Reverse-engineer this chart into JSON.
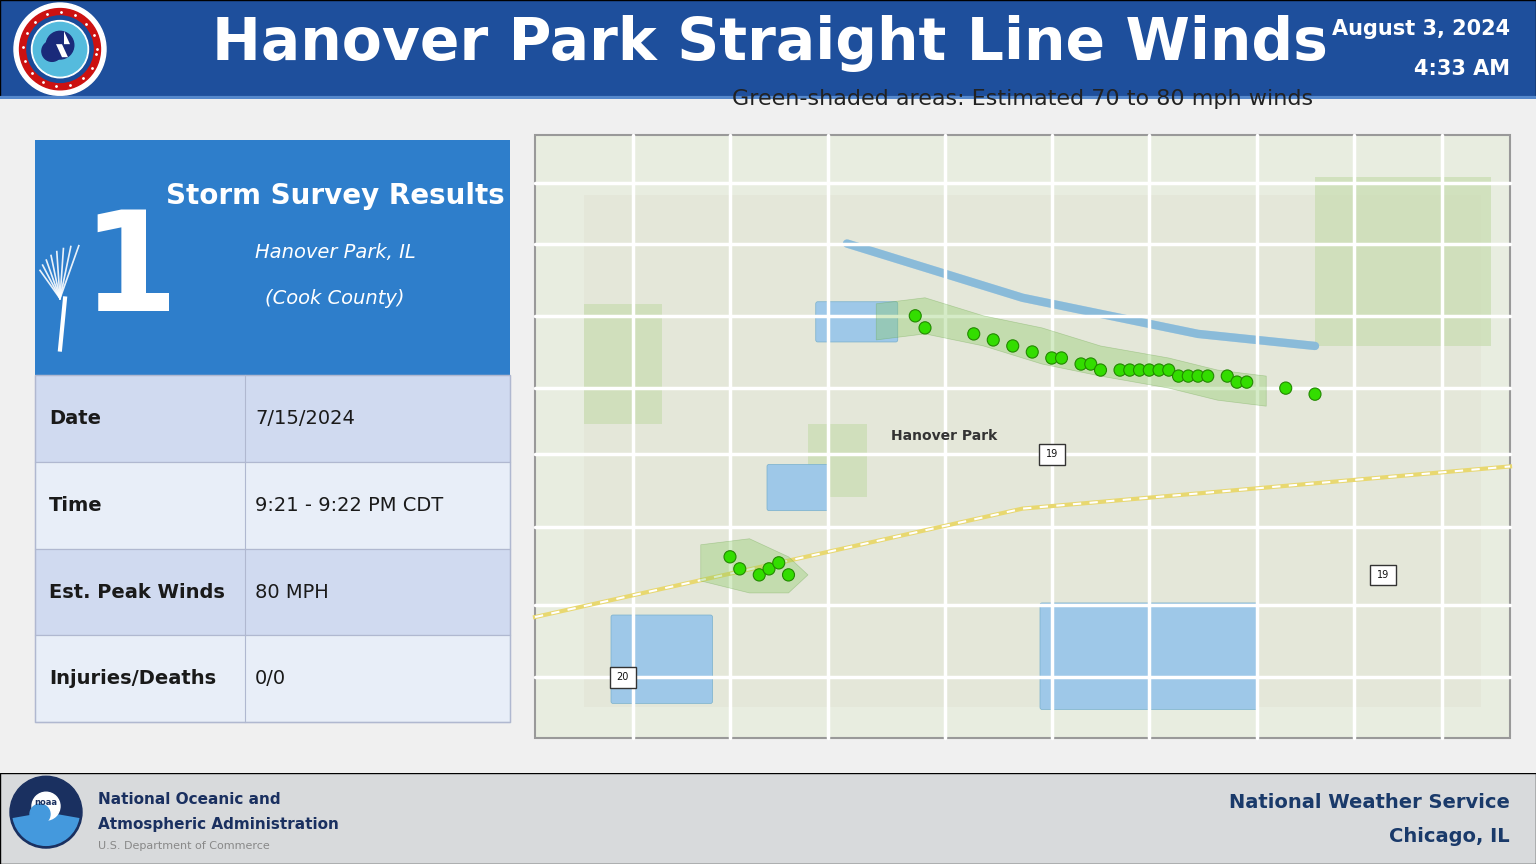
{
  "title": "Hanover Park Straight Line Winds",
  "date_str": "August 3, 2024",
  "time_str": "4:33 AM",
  "header_bg": "#1e4f9c",
  "body_bg": "#f0f0f0",
  "footer_bg": "#d8dadc",
  "table_header_bg": "#2e7ecb",
  "table_row_odd_bg": "#d0daf0",
  "table_row_even_bg": "#e8eef8",
  "survey_title": "Storm Survey Results",
  "survey_location": "Hanover Park, IL",
  "survey_county": "(Cook County)",
  "table_rows": [
    {
      "label": "Date",
      "value": "7/15/2024"
    },
    {
      "label": "Time",
      "value": "9:21 - 9:22 PM CDT"
    },
    {
      "label": "Est. Peak Winds",
      "value": "80 MPH"
    },
    {
      "label": "Injuries/Deaths",
      "value": "0/0"
    }
  ],
  "map_caption": "Green-shaded areas: Estimated 70 to 80 mph winds",
  "nws_line1": "National Weather Service",
  "nws_line2": "Chicago, IL",
  "noaa_line1": "National Oceanic and",
  "noaa_line2": "Atmospheric Administration",
  "noaa_line3": "U.S. Department of Commerce",
  "footer_nws_color": "#1a3a6a",
  "map_bg": "#e8ede0",
  "map_urban_bg": "#e0e0d0",
  "map_road_color": "#ffffff",
  "map_road_yellow": "#f5e87a",
  "map_water_color": "#9ec8e8",
  "map_park_color": "#c8ddb0",
  "dot_color": "#33dd00",
  "dot_edge": "#228800",
  "green_shade": "#88c860",
  "green_shade_alpha": 0.35,
  "header_line_color": "#5588cc"
}
